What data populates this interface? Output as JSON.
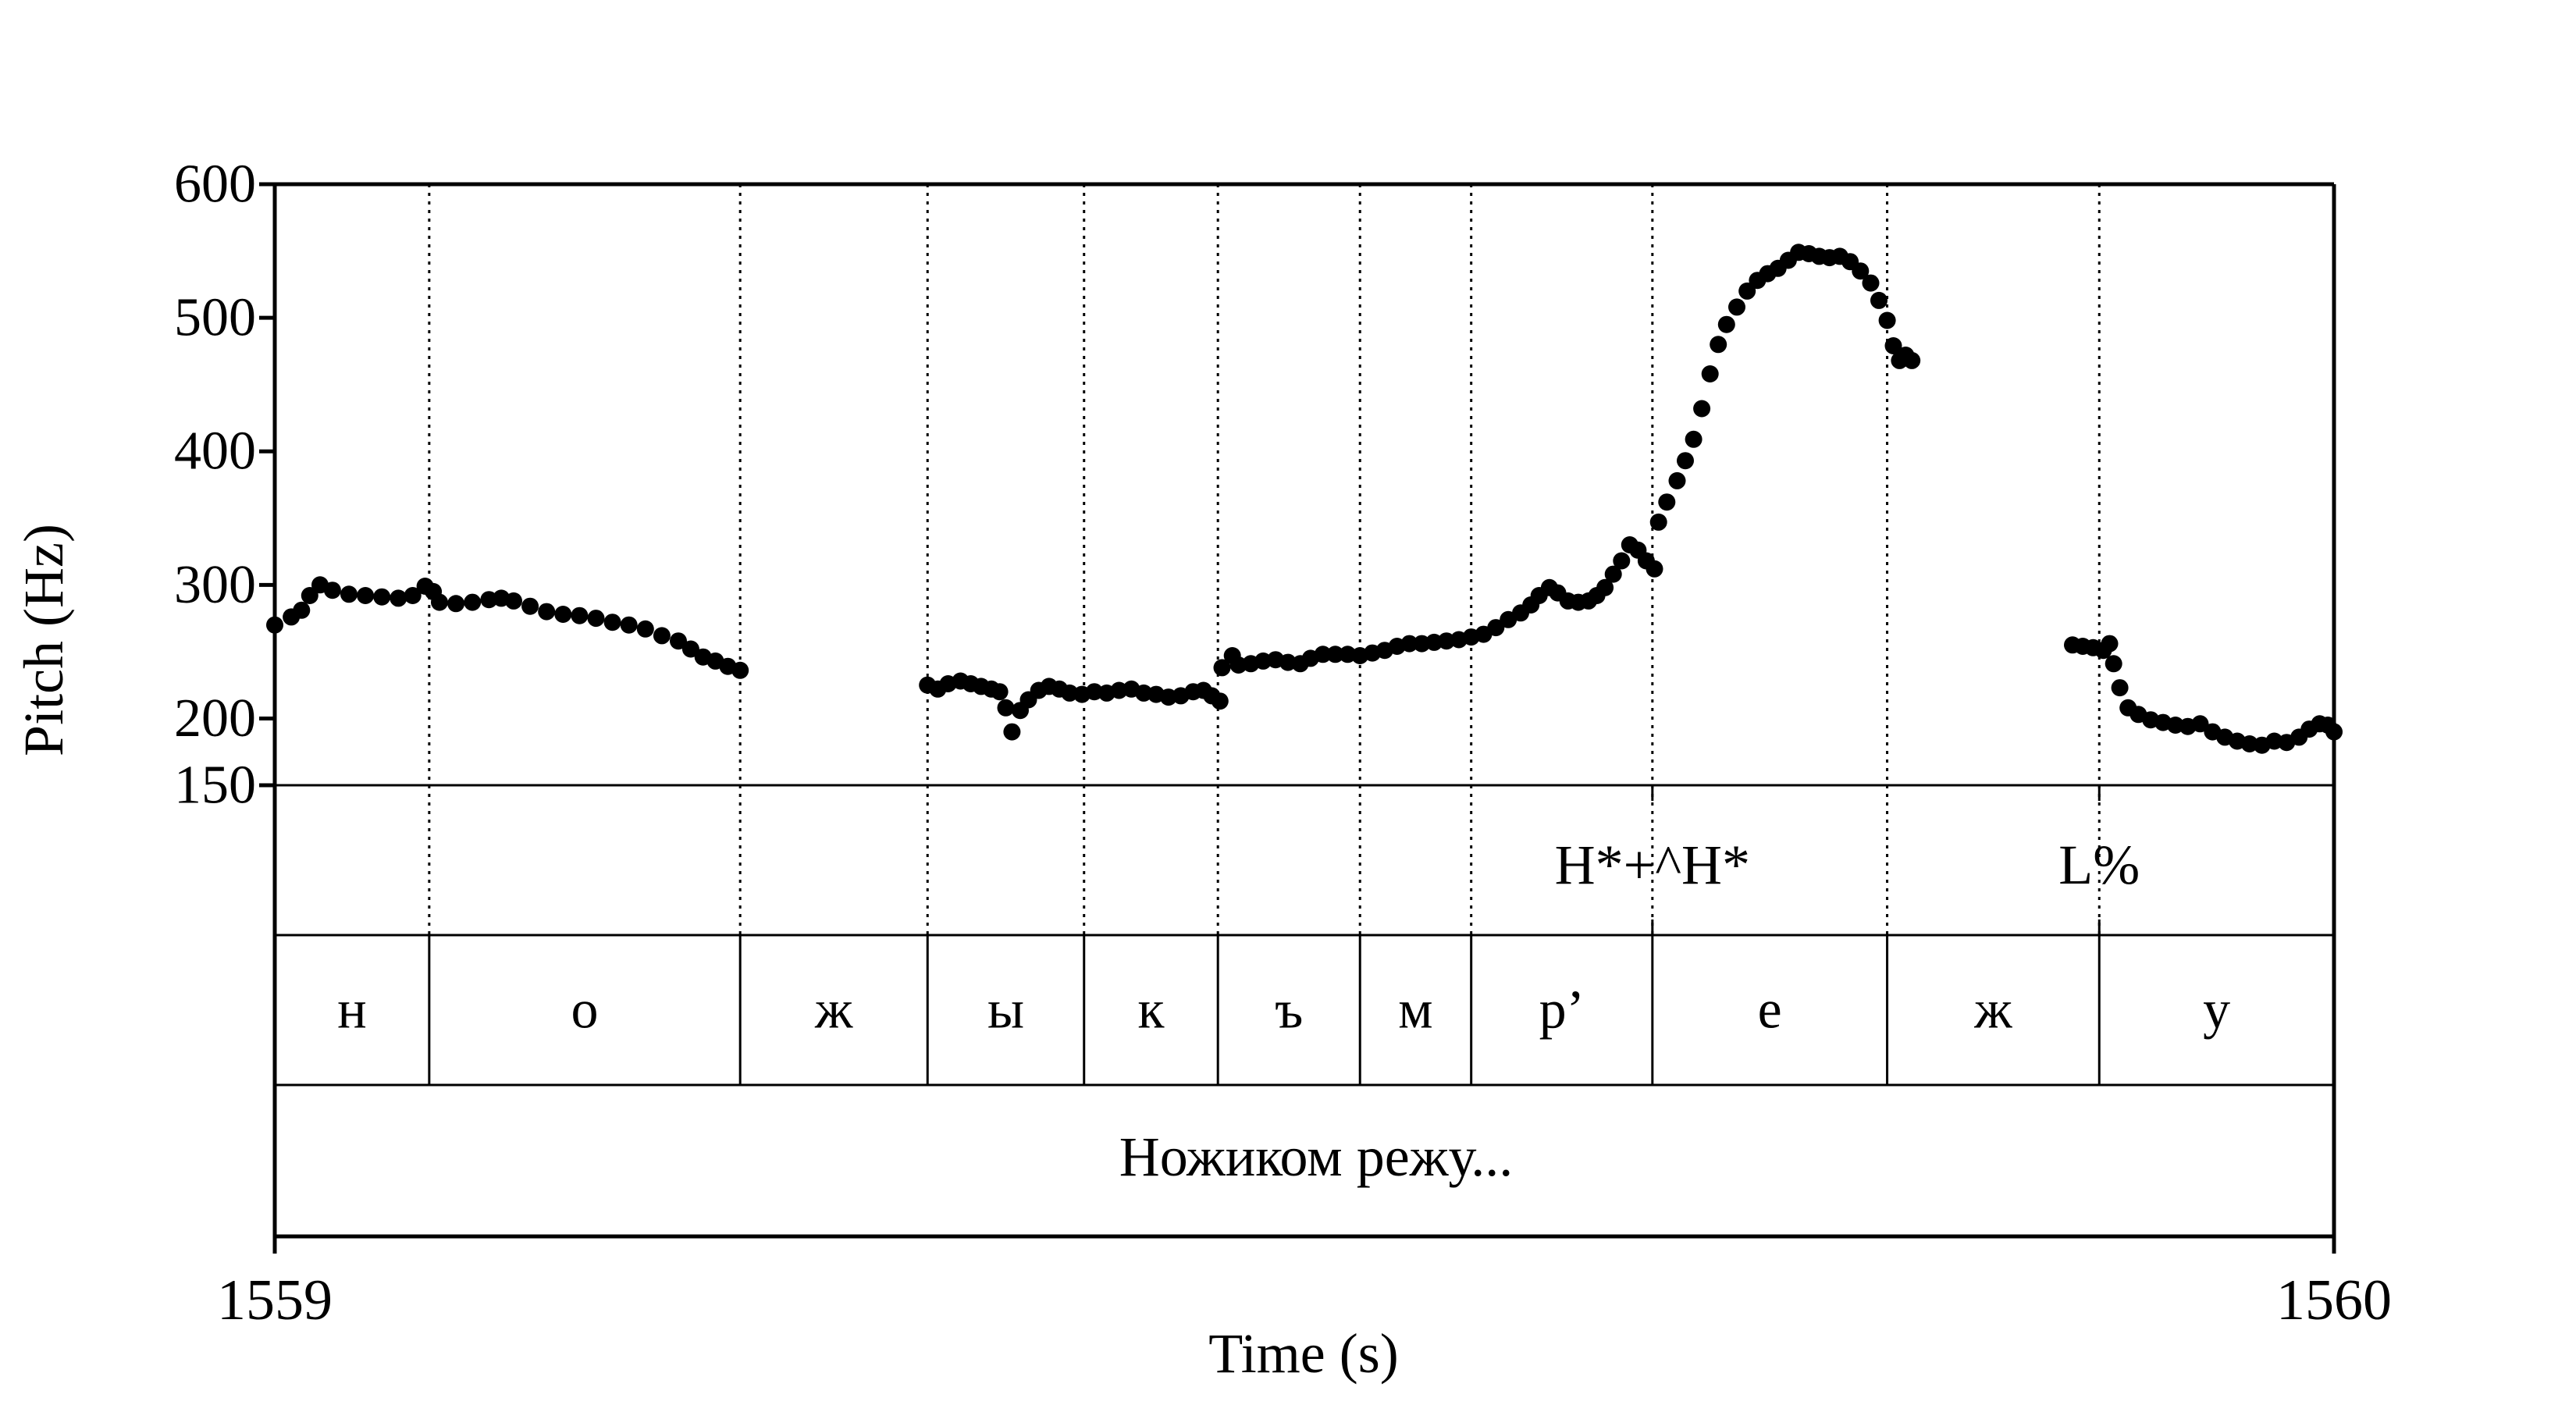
{
  "chart_data": {
    "type": "scatter",
    "title": "",
    "xlabel": "Time (s)",
    "ylabel": "Pitch (Hz)",
    "xlim": [
      1559,
      1560
    ],
    "ylim": [
      150,
      600
    ],
    "yticks": [
      "600",
      "500",
      "400",
      "300",
      "200",
      "150"
    ],
    "ytick_values": [
      600,
      500,
      400,
      300,
      200,
      150
    ],
    "xticks": [
      "1559",
      "1560"
    ],
    "xtick_values": [
      1559,
      1560
    ],
    "boundaries": [
      1559.075,
      1559.226,
      1559.317,
      1559.393,
      1559.458,
      1559.527,
      1559.581,
      1559.669,
      1559.783,
      1559.886
    ],
    "tones": [
      {
        "time": 1559.669,
        "label": "H*+^H*"
      },
      {
        "time": 1559.886,
        "label": "L%"
      }
    ],
    "segments": [
      {
        "start": 1559.0,
        "end": 1559.075,
        "label": "н"
      },
      {
        "start": 1559.075,
        "end": 1559.226,
        "label": "о"
      },
      {
        "start": 1559.226,
        "end": 1559.317,
        "label": "ж"
      },
      {
        "start": 1559.317,
        "end": 1559.393,
        "label": "ы"
      },
      {
        "start": 1559.393,
        "end": 1559.458,
        "label": "к"
      },
      {
        "start": 1559.458,
        "end": 1559.527,
        "label": "ъ"
      },
      {
        "start": 1559.527,
        "end": 1559.581,
        "label": "м"
      },
      {
        "start": 1559.581,
        "end": 1559.669,
        "label": "р’"
      },
      {
        "start": 1559.669,
        "end": 1559.783,
        "label": "е"
      },
      {
        "start": 1559.783,
        "end": 1559.886,
        "label": "ж"
      },
      {
        "start": 1559.886,
        "end": 1560.0,
        "label": "у"
      }
    ],
    "phrase": "Ножиком режу...",
    "pitch_runs": [
      [
        [
          1559.0,
          270
        ],
        [
          1559.008,
          276
        ],
        [
          1559.013,
          281
        ],
        [
          1559.017,
          292
        ],
        [
          1559.022,
          300
        ],
        [
          1559.028,
          296
        ],
        [
          1559.036,
          293
        ],
        [
          1559.044,
          292
        ],
        [
          1559.052,
          291
        ],
        [
          1559.06,
          290
        ],
        [
          1559.067,
          292
        ],
        [
          1559.073,
          299
        ],
        [
          1559.077,
          295
        ],
        [
          1559.08,
          287
        ],
        [
          1559.088,
          286
        ],
        [
          1559.096,
          287
        ],
        [
          1559.104,
          289
        ],
        [
          1559.11,
          290
        ],
        [
          1559.116,
          288
        ],
        [
          1559.124,
          284
        ],
        [
          1559.132,
          280
        ],
        [
          1559.14,
          278
        ],
        [
          1559.148,
          277
        ],
        [
          1559.156,
          275
        ],
        [
          1559.164,
          272
        ],
        [
          1559.172,
          270
        ],
        [
          1559.18,
          267
        ],
        [
          1559.188,
          262
        ],
        [
          1559.196,
          258
        ],
        [
          1559.202,
          252
        ],
        [
          1559.208,
          246
        ],
        [
          1559.214,
          243
        ],
        [
          1559.22,
          239
        ],
        [
          1559.226,
          236
        ]
      ],
      [
        [
          1559.317,
          225
        ],
        [
          1559.322,
          222
        ],
        [
          1559.327,
          226
        ],
        [
          1559.333,
          228
        ],
        [
          1559.338,
          226
        ],
        [
          1559.343,
          224
        ],
        [
          1559.348,
          222
        ],
        [
          1559.352,
          220
        ],
        [
          1559.355,
          208
        ],
        [
          1559.358,
          190
        ],
        [
          1559.362,
          206
        ],
        [
          1559.366,
          214
        ],
        [
          1559.371,
          221
        ],
        [
          1559.376,
          224
        ],
        [
          1559.381,
          222
        ],
        [
          1559.386,
          219
        ],
        [
          1559.392,
          218
        ],
        [
          1559.398,
          220
        ],
        [
          1559.404,
          219
        ],
        [
          1559.41,
          221
        ],
        [
          1559.416,
          222
        ],
        [
          1559.422,
          219
        ],
        [
          1559.428,
          218
        ],
        [
          1559.434,
          216
        ],
        [
          1559.44,
          217
        ],
        [
          1559.446,
          220
        ],
        [
          1559.451,
          221
        ],
        [
          1559.455,
          217
        ],
        [
          1559.459,
          213
        ]
      ],
      [
        [
          1559.46,
          238
        ],
        [
          1559.465,
          247
        ],
        [
          1559.468,
          240
        ],
        [
          1559.474,
          241
        ],
        [
          1559.48,
          243
        ],
        [
          1559.486,
          244
        ],
        [
          1559.492,
          242
        ],
        [
          1559.498,
          241
        ],
        [
          1559.503,
          245
        ],
        [
          1559.509,
          248
        ],
        [
          1559.515,
          248
        ],
        [
          1559.521,
          248
        ],
        [
          1559.527,
          247
        ],
        [
          1559.533,
          249
        ],
        [
          1559.539,
          251
        ],
        [
          1559.545,
          254
        ],
        [
          1559.551,
          256
        ],
        [
          1559.557,
          256
        ],
        [
          1559.563,
          257
        ],
        [
          1559.569,
          258
        ],
        [
          1559.575,
          259
        ],
        [
          1559.581,
          261
        ],
        [
          1559.587,
          263
        ],
        [
          1559.593,
          268
        ],
        [
          1559.599,
          274
        ],
        [
          1559.605,
          279
        ],
        [
          1559.61,
          285
        ],
        [
          1559.614,
          292
        ],
        [
          1559.619,
          298
        ],
        [
          1559.623,
          294
        ],
        [
          1559.628,
          288
        ],
        [
          1559.633,
          287
        ],
        [
          1559.638,
          288
        ],
        [
          1559.642,
          292
        ],
        [
          1559.646,
          298
        ],
        [
          1559.65,
          308
        ],
        [
          1559.654,
          318
        ],
        [
          1559.658,
          330
        ],
        [
          1559.662,
          326
        ],
        [
          1559.666,
          318
        ],
        [
          1559.67,
          312
        ]
      ],
      [
        [
          1559.672,
          347
        ],
        [
          1559.676,
          362
        ],
        [
          1559.681,
          378
        ],
        [
          1559.685,
          393
        ],
        [
          1559.689,
          409
        ],
        [
          1559.693,
          432
        ],
        [
          1559.697,
          458
        ],
        [
          1559.701,
          480
        ],
        [
          1559.705,
          495
        ],
        [
          1559.71,
          508
        ],
        [
          1559.715,
          520
        ],
        [
          1559.72,
          528
        ],
        [
          1559.725,
          533
        ],
        [
          1559.73,
          537
        ],
        [
          1559.735,
          543
        ],
        [
          1559.74,
          549
        ],
        [
          1559.745,
          548
        ],
        [
          1559.75,
          546
        ],
        [
          1559.755,
          545
        ],
        [
          1559.76,
          546
        ],
        [
          1559.765,
          542
        ],
        [
          1559.77,
          535
        ],
        [
          1559.775,
          526
        ],
        [
          1559.779,
          513
        ],
        [
          1559.783,
          498
        ],
        [
          1559.786,
          479
        ],
        [
          1559.789,
          468
        ],
        [
          1559.792,
          472
        ],
        [
          1559.795,
          468
        ]
      ],
      [
        [
          1559.873,
          255
        ],
        [
          1559.878,
          254
        ],
        [
          1559.883,
          253
        ],
        [
          1559.888,
          251
        ],
        [
          1559.891,
          256
        ],
        [
          1559.893,
          241
        ],
        [
          1559.896,
          223
        ],
        [
          1559.9,
          208
        ],
        [
          1559.905,
          203
        ],
        [
          1559.911,
          199
        ],
        [
          1559.917,
          197
        ],
        [
          1559.923,
          195
        ],
        [
          1559.929,
          194
        ],
        [
          1559.935,
          196
        ],
        [
          1559.941,
          190
        ],
        [
          1559.947,
          186
        ],
        [
          1559.953,
          183
        ],
        [
          1559.959,
          181
        ],
        [
          1559.965,
          180
        ],
        [
          1559.971,
          183
        ],
        [
          1559.977,
          182
        ],
        [
          1559.983,
          186
        ],
        [
          1559.988,
          192
        ],
        [
          1559.993,
          196
        ],
        [
          1559.997,
          195
        ],
        [
          1560.0,
          190
        ]
      ]
    ]
  }
}
